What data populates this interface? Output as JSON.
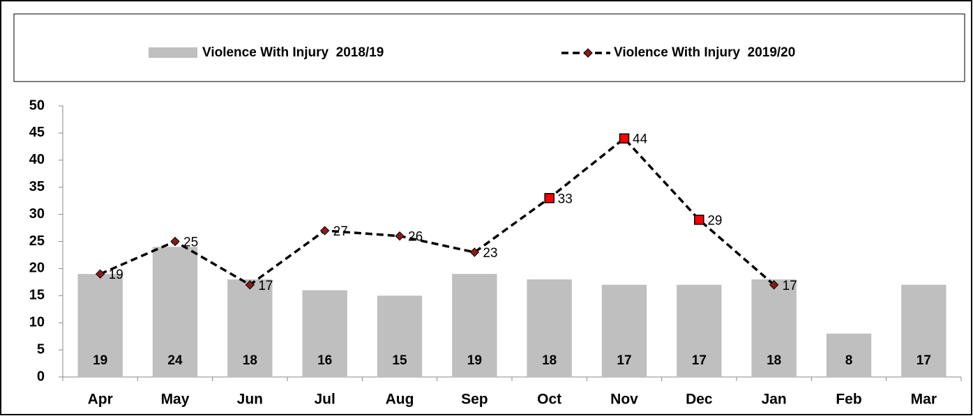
{
  "chart_data": {
    "type": "combo",
    "categories": [
      "Apr",
      "May",
      "Jun",
      "Jul",
      "Aug",
      "Sep",
      "Oct",
      "Nov",
      "Dec",
      "Jan",
      "Feb",
      "Mar"
    ],
    "series": [
      {
        "name": "Violence With Injury  2018/19",
        "type": "bar",
        "color": "#bfbfbf",
        "values": [
          19,
          24,
          18,
          16,
          15,
          19,
          18,
          17,
          17,
          18,
          8,
          17
        ]
      },
      {
        "name": "Violence With Injury  2019/20",
        "type": "line",
        "color": "#000000",
        "values": [
          19,
          25,
          17,
          27,
          26,
          23,
          33,
          44,
          29,
          17,
          null,
          null
        ],
        "marker_colors": [
          "#8b1a1a",
          "#8b1a1a",
          "#8b1a1a",
          "#8b1a1a",
          "#8b1a1a",
          "#8b1a1a",
          "#ff0000",
          "#ff0000",
          "#ff0000",
          "#8b1a1a",
          null,
          null
        ]
      }
    ],
    "ylim": [
      0,
      50
    ],
    "yticks": [
      0,
      5,
      10,
      15,
      20,
      25,
      30,
      35,
      40,
      45,
      50
    ],
    "grid": false,
    "legend": "top"
  }
}
